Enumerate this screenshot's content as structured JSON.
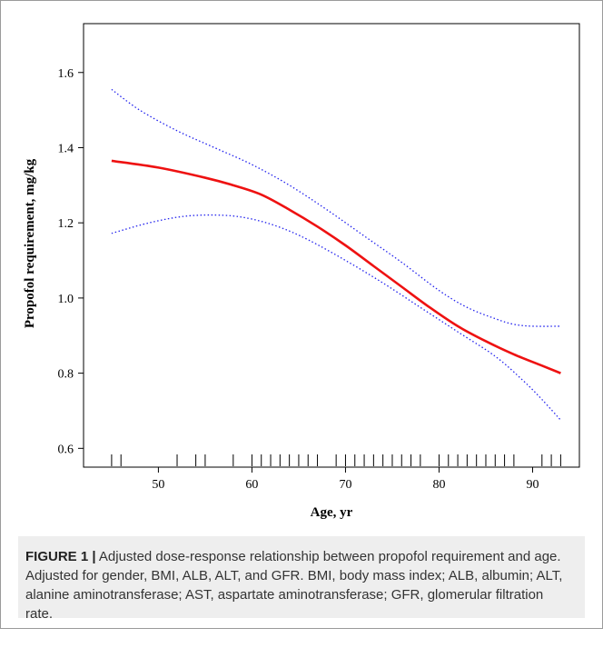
{
  "chart_data": {
    "type": "line",
    "xlabel": "Age, yr",
    "ylabel": "Propofol requirement, mg/kg",
    "xlim": [
      42,
      95
    ],
    "ylim": [
      0.55,
      1.73
    ],
    "x_ticks": [
      50,
      60,
      70,
      80,
      90
    ],
    "y_ticks": [
      0.6,
      0.8,
      1.0,
      1.2,
      1.4,
      1.6
    ],
    "y_tick_labels": [
      "0.6",
      "0.8",
      "1.0",
      "1.2",
      "1.4",
      "1.6"
    ],
    "grid": false,
    "series": [
      {
        "role": "estimate",
        "color": "#ee1111",
        "style": "solid",
        "x": [
          45,
          50,
          55,
          58,
          61,
          64,
          67,
          70,
          73,
          76,
          79,
          82,
          85,
          88,
          91,
          93
        ],
        "y": [
          1.365,
          1.347,
          1.32,
          1.3,
          1.275,
          1.235,
          1.19,
          1.14,
          1.085,
          1.03,
          0.975,
          0.925,
          0.885,
          0.85,
          0.82,
          0.8
        ]
      },
      {
        "role": "upper 95% CI",
        "color": "#2222ee",
        "style": "dotted",
        "x": [
          45,
          48,
          52,
          56,
          60,
          64,
          68,
          72,
          76,
          80,
          83,
          86,
          88,
          90,
          93
        ],
        "y": [
          1.555,
          1.5,
          1.445,
          1.4,
          1.355,
          1.3,
          1.235,
          1.165,
          1.095,
          1.02,
          0.975,
          0.945,
          0.93,
          0.925,
          0.925
        ]
      },
      {
        "role": "lower 95% CI",
        "color": "#2222ee",
        "style": "dotted",
        "x": [
          45,
          49,
          53,
          57,
          60,
          63,
          66,
          70,
          74,
          78,
          82,
          86,
          89,
          91,
          93
        ],
        "y": [
          1.172,
          1.2,
          1.218,
          1.22,
          1.21,
          1.188,
          1.155,
          1.1,
          1.04,
          0.975,
          0.91,
          0.845,
          0.78,
          0.73,
          0.675
        ]
      }
    ],
    "rug_x": [
      45,
      46,
      52,
      54,
      55,
      58,
      60,
      61,
      62,
      63,
      64,
      65,
      66,
      67,
      69,
      70,
      71,
      72,
      73,
      74,
      75,
      76,
      77,
      78,
      80,
      81,
      82,
      83,
      84,
      85,
      86,
      87,
      88,
      91,
      92,
      93
    ]
  },
  "caption": {
    "label": "FIGURE 1 |",
    "text": " Adjusted dose-response relationship between propofol requirement and age. Adjusted for gender, BMI, ALB, ALT, and GFR. BMI, body mass index; ALB, albumin; ALT, alanine aminotransferase; AST, aspartate aminotransferase; GFR, glomerular filtration rate."
  }
}
